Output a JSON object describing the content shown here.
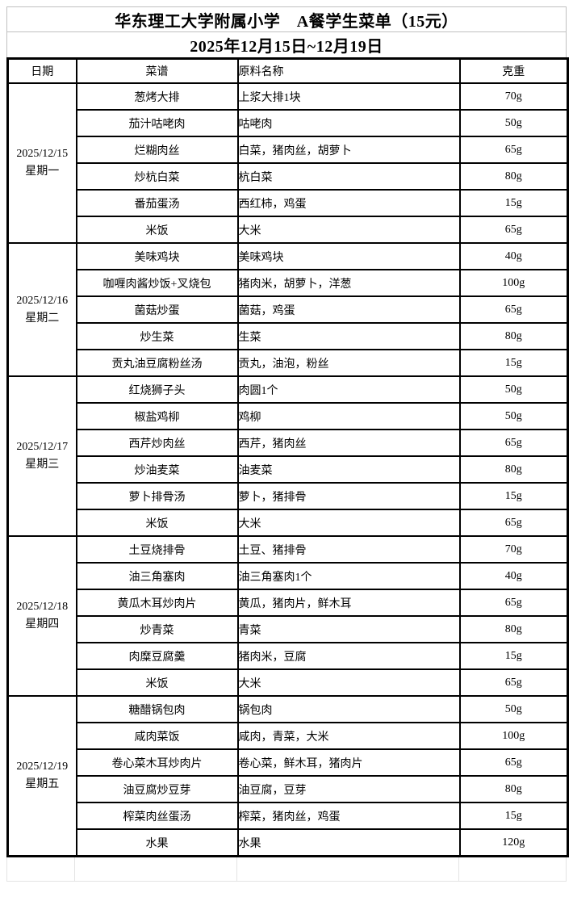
{
  "title": "华东理工大学附属小学　A餐学生菜单（15元）",
  "subtitle": "2025年12月15日~12月19日",
  "columns": {
    "date": "日期",
    "menu": "菜谱",
    "ingredients": "原料名称",
    "weight": "克重"
  },
  "days": [
    {
      "date": "2025/12/15",
      "weekday": "星期一",
      "rows": [
        {
          "dish": "葱烤大排",
          "ingredients": "上浆大排1块",
          "weight": "70g"
        },
        {
          "dish": "茄汁咕咾肉",
          "ingredients": "咕咾肉",
          "weight": "50g"
        },
        {
          "dish": "烂糊肉丝",
          "ingredients": "白菜，猪肉丝，胡萝卜",
          "weight": "65g"
        },
        {
          "dish": "炒杭白菜",
          "ingredients": "杭白菜",
          "weight": "80g"
        },
        {
          "dish": "番茄蛋汤",
          "ingredients": "西红柿，鸡蛋",
          "weight": "15g"
        },
        {
          "dish": "米饭",
          "ingredients": "大米",
          "weight": "65g"
        }
      ]
    },
    {
      "date": "2025/12/16",
      "weekday": "星期二",
      "rows": [
        {
          "dish": "美味鸡块",
          "ingredients": "美味鸡块",
          "weight": "40g"
        },
        {
          "dish": "咖喱肉酱炒饭+叉烧包",
          "ingredients": "猪肉米，胡萝卜，洋葱",
          "weight": "100g"
        },
        {
          "dish": "菌菇炒蛋",
          "ingredients": "菌菇，鸡蛋",
          "weight": "65g"
        },
        {
          "dish": "炒生菜",
          "ingredients": "生菜",
          "weight": "80g"
        },
        {
          "dish": "贡丸油豆腐粉丝汤",
          "ingredients": "贡丸，油泡，粉丝",
          "weight": "15g"
        }
      ]
    },
    {
      "date": "2025/12/17",
      "weekday": "星期三",
      "rows": [
        {
          "dish": "红烧狮子头",
          "ingredients": "肉圆1个",
          "weight": "50g"
        },
        {
          "dish": "椒盐鸡柳",
          "ingredients": "鸡柳",
          "weight": "50g"
        },
        {
          "dish": "西芹炒肉丝",
          "ingredients": "西芹，猪肉丝",
          "weight": "65g"
        },
        {
          "dish": "炒油麦菜",
          "ingredients": "油麦菜",
          "weight": "80g"
        },
        {
          "dish": "萝卜排骨汤",
          "ingredients": "萝卜，猪排骨",
          "weight": "15g"
        },
        {
          "dish": "米饭",
          "ingredients": "大米",
          "weight": "65g"
        }
      ]
    },
    {
      "date": "2025/12/18",
      "weekday": "星期四",
      "rows": [
        {
          "dish": "土豆烧排骨",
          "ingredients": "土豆、猪排骨",
          "weight": "70g"
        },
        {
          "dish": "油三角塞肉",
          "ingredients": "油三角塞肉1个",
          "weight": "40g"
        },
        {
          "dish": "黄瓜木耳炒肉片",
          "ingredients": "黄瓜，猪肉片，鲜木耳",
          "weight": "65g"
        },
        {
          "dish": "炒青菜",
          "ingredients": "青菜",
          "weight": "80g"
        },
        {
          "dish": "肉糜豆腐羹",
          "ingredients": "猪肉米，豆腐",
          "weight": "15g"
        },
        {
          "dish": "米饭",
          "ingredients": "大米",
          "weight": "65g"
        }
      ]
    },
    {
      "date": "2025/12/19",
      "weekday": "星期五",
      "rows": [
        {
          "dish": "糖醋锅包肉",
          "ingredients": "锅包肉",
          "weight": "50g"
        },
        {
          "dish": "咸肉菜饭",
          "ingredients": "咸肉，青菜，大米",
          "weight": "100g"
        },
        {
          "dish": "卷心菜木耳炒肉片",
          "ingredients": "卷心菜，鲜木耳，猪肉片",
          "weight": "65g"
        },
        {
          "dish": "油豆腐炒豆芽",
          "ingredients": "油豆腐，豆芽",
          "weight": "80g"
        },
        {
          "dish": "榨菜肉丝蛋汤",
          "ingredients": "榨菜，猪肉丝，鸡蛋",
          "weight": "15g"
        },
        {
          "dish": "水果",
          "ingredients": "水果",
          "weight": "120g"
        }
      ]
    }
  ]
}
